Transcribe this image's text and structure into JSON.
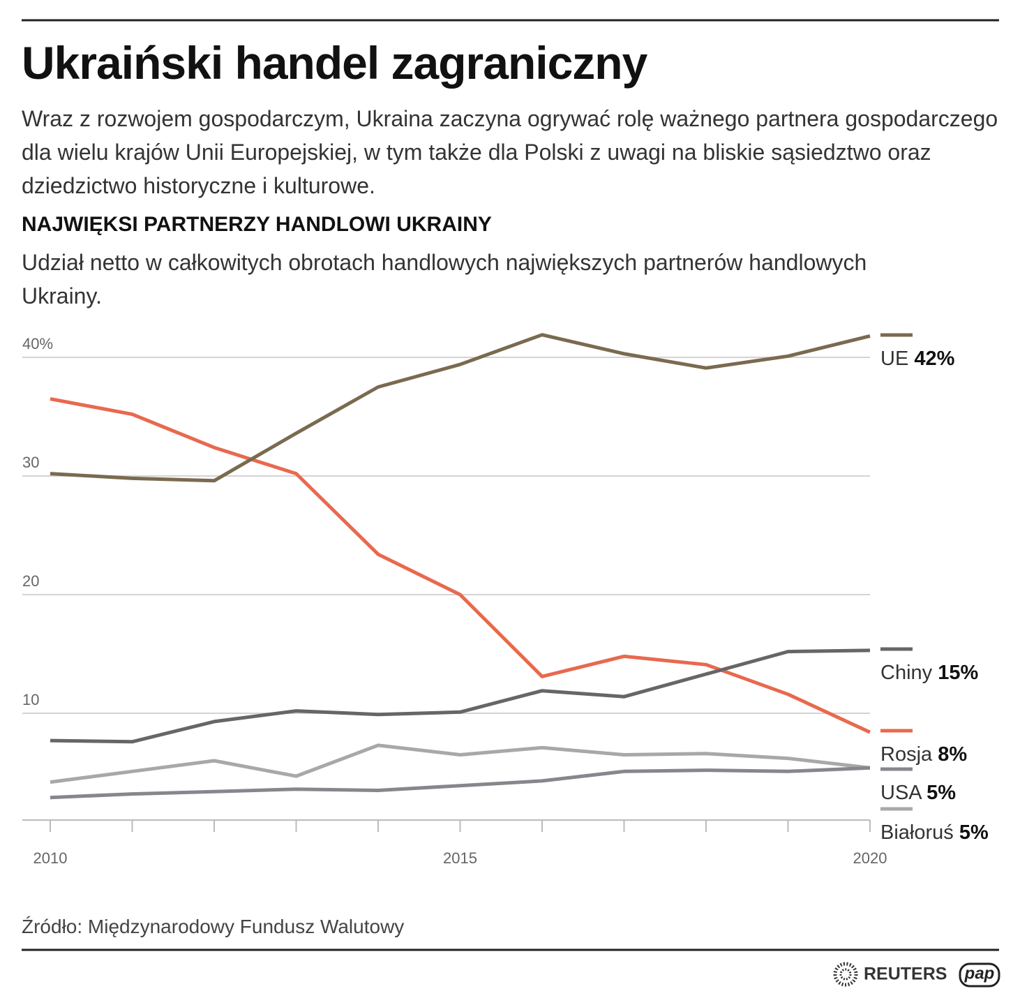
{
  "chart_data": {
    "type": "line",
    "title": "Ukraiński handel zagraniczny",
    "intro": "Wraz z rozwojem gospodarczym, Ukraina zaczyna ogrywać rolę ważnego partnera gospodarczego dla wielu krajów Unii Europejskiej, w tym także dla Polski z uwagi na bliskie sąsiedztwo oraz dziedzictwo historyczne i kulturowe.",
    "section_title": "NAJWIĘKSI PARTNERZY HANDLOWI UKRAINY",
    "subtitle": "Udział netto w całkowitych obrotach handlowych największych partnerów handlowych Ukrainy.",
    "source": "Źródło: Międzynarodowy Fundusz Walutowy",
    "credits": [
      "REUTERS",
      "pap"
    ],
    "x": [
      2010,
      2011,
      2012,
      2013,
      2014,
      2015,
      2016,
      2017,
      2018,
      2019,
      2020
    ],
    "xlim": [
      2010,
      2020
    ],
    "xticks": [
      2010,
      2015,
      2020
    ],
    "ylim": [
      1,
      43
    ],
    "yticks": [
      10,
      20,
      30,
      {
        "value": 40,
        "label": "40%"
      }
    ],
    "grid": true,
    "series": [
      {
        "name": "UE",
        "end_label": "42%",
        "color": "#7a6a4f",
        "values": [
          30.2,
          29.8,
          29.6,
          33.6,
          37.5,
          39.4,
          41.9,
          40.3,
          39.1,
          40.1,
          41.8
        ]
      },
      {
        "name": "Chiny",
        "end_label": "15%",
        "color": "#666666",
        "values": [
          7.7,
          7.6,
          9.3,
          10.2,
          9.9,
          10.1,
          11.9,
          11.4,
          13.3,
          15.2,
          15.3
        ]
      },
      {
        "name": "Rosja",
        "end_label": "8%",
        "color": "#e8694e",
        "values": [
          36.5,
          35.2,
          32.4,
          30.2,
          23.4,
          20.0,
          13.1,
          14.8,
          14.1,
          11.6,
          8.4
        ]
      },
      {
        "name": "USA",
        "end_label": "5%",
        "color": "#85878c",
        "values": [
          2.9,
          3.2,
          3.4,
          3.6,
          3.5,
          3.9,
          4.3,
          5.1,
          5.2,
          5.1,
          5.4
        ]
      },
      {
        "name": "Białoruś",
        "end_label": "5%",
        "color": "#a8a8a8",
        "values": [
          4.2,
          5.1,
          6.0,
          4.7,
          7.3,
          6.5,
          7.1,
          6.5,
          6.6,
          6.2,
          5.4
        ]
      }
    ]
  }
}
